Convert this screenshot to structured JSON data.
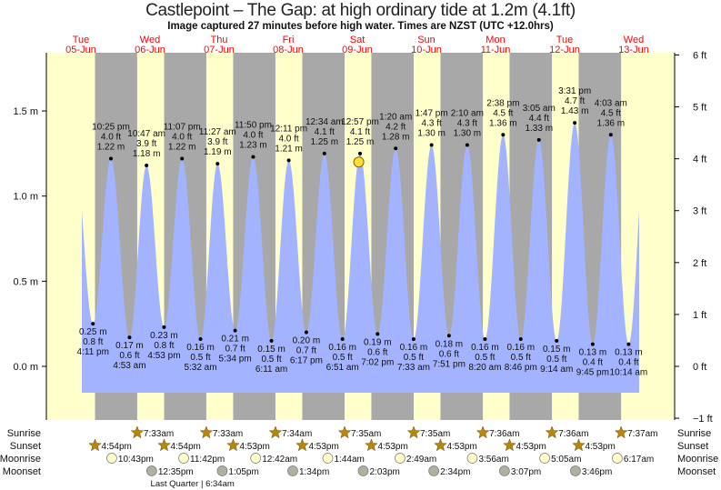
{
  "title": "Castlepoint – The Gap: at high  ordinary tide at 1.2m (4.1ft)",
  "subtitle": "Image captured 27 minutes before high water. Times are NZST (UTC +12.0hrs)",
  "colors": {
    "day": "#ffffcc",
    "night": "#a8a8a8",
    "tide": "#a3b3ff",
    "day_label": "#ff0000",
    "sun_icon": "#b8860b",
    "moonrise_icon": "#ffffcc",
    "moonset_icon": "#b0b0a0",
    "current_marker": "#ffdd33"
  },
  "chart_data": {
    "type": "area",
    "title": "Castlepoint – The Gap: at high  ordinary tide at 1.2m (4.1ft)",
    "y_left": {
      "unit": "m",
      "ticks": [
        "1.5 m",
        "1.0 m",
        "0.5 m",
        "0.0 m"
      ],
      "values": [
        1.5,
        1.0,
        0.5,
        0.0
      ]
    },
    "y_right": {
      "unit": "ft",
      "ticks": [
        "6 ft",
        "5 ft",
        "4 ft",
        "3 ft",
        "2 ft",
        "1 ft",
        "0 ft",
        "−1 ft"
      ],
      "values": [
        6,
        5,
        4,
        3,
        2,
        1,
        0,
        -1
      ]
    },
    "ylim_m": [
      -0.3,
      1.85
    ],
    "days": [
      {
        "dow": "Tue",
        "date": "05-Jun"
      },
      {
        "dow": "Wed",
        "date": "06-Jun"
      },
      {
        "dow": "Thu",
        "date": "07-Jun"
      },
      {
        "dow": "Fri",
        "date": "08-Jun"
      },
      {
        "dow": "Sat",
        "date": "09-Jun"
      },
      {
        "dow": "Sun",
        "date": "10-Jun"
      },
      {
        "dow": "Mon",
        "date": "11-Jun"
      },
      {
        "dow": "Tue",
        "date": "12-Jun"
      },
      {
        "dow": "Wed",
        "date": "13-Jun"
      }
    ],
    "tides": [
      {
        "day": 0,
        "type": "low",
        "time": "4:11 pm",
        "h": "16:11",
        "m": "0.25 m",
        "ft": "0.8 ft",
        "value": 0.25
      },
      {
        "day": 0,
        "type": "high",
        "time": "10:25 pm",
        "h": "22:25",
        "m": "1.22 m",
        "ft": "4.0 ft",
        "value": 1.22
      },
      {
        "day": 1,
        "type": "low",
        "time": "4:53 am",
        "h": "04:53",
        "m": "0.17 m",
        "ft": "0.6 ft",
        "value": 0.17
      },
      {
        "day": 1,
        "type": "high",
        "time": "10:47 am",
        "h": "10:47",
        "m": "1.18 m",
        "ft": "3.9 ft",
        "value": 1.18
      },
      {
        "day": 1,
        "type": "low",
        "time": "4:53 pm",
        "h": "16:53",
        "m": "0.23 m",
        "ft": "0.8 ft",
        "value": 0.23
      },
      {
        "day": 1,
        "type": "high",
        "time": "11:07 pm",
        "h": "23:07",
        "m": "1.22 m",
        "ft": "4.0 ft",
        "value": 1.22
      },
      {
        "day": 2,
        "type": "low",
        "time": "5:32 am",
        "h": "05:32",
        "m": "0.16 m",
        "ft": "0.5 ft",
        "value": 0.16
      },
      {
        "day": 2,
        "type": "high",
        "time": "11:27 am",
        "h": "11:27",
        "m": "1.19 m",
        "ft": "3.9 ft",
        "value": 1.19
      },
      {
        "day": 2,
        "type": "low",
        "time": "5:34 pm",
        "h": "17:34",
        "m": "0.21 m",
        "ft": "0.7 ft",
        "value": 0.21
      },
      {
        "day": 2,
        "type": "high",
        "time": "11:50 pm",
        "h": "23:50",
        "m": "1.23 m",
        "ft": "4.0 ft",
        "value": 1.23
      },
      {
        "day": 3,
        "type": "low",
        "time": "6:11 am",
        "h": "06:11",
        "m": "0.15 m",
        "ft": "0.5 ft",
        "value": 0.15
      },
      {
        "day": 3,
        "type": "high",
        "time": "12:11 pm",
        "h": "12:11",
        "m": "1.21 m",
        "ft": "4.0 ft",
        "value": 1.21
      },
      {
        "day": 3,
        "type": "low",
        "time": "6:17 pm",
        "h": "18:17",
        "m": "0.20 m",
        "ft": "0.7 ft",
        "value": 0.2
      },
      {
        "day": 4,
        "type": "high",
        "time": "12:34 am",
        "h": "00:34",
        "m": "1.25 m",
        "ft": "4.1 ft",
        "value": 1.25
      },
      {
        "day": 4,
        "type": "low",
        "time": "6:51 am",
        "h": "06:51",
        "m": "0.16 m",
        "ft": "0.5 ft",
        "value": 0.16
      },
      {
        "day": 4,
        "type": "high",
        "time": "12:57 pm",
        "h": "12:57",
        "m": "1.25 m",
        "ft": "4.1 ft",
        "value": 1.25
      },
      {
        "day": 4,
        "type": "low",
        "time": "7:02 pm",
        "h": "19:02",
        "m": "0.19 m",
        "ft": "0.6 ft",
        "value": 0.19
      },
      {
        "day": 5,
        "type": "high",
        "time": "1:20 am",
        "h": "01:20",
        "m": "1.28 m",
        "ft": "4.2 ft",
        "value": 1.28
      },
      {
        "day": 5,
        "type": "low",
        "time": "7:33 am",
        "h": "07:33",
        "m": "0.16 m",
        "ft": "0.5 ft",
        "value": 0.16
      },
      {
        "day": 5,
        "type": "high",
        "time": "1:47 pm",
        "h": "13:47",
        "m": "1.30 m",
        "ft": "4.3 ft",
        "value": 1.3
      },
      {
        "day": 5,
        "type": "low",
        "time": "7:51 pm",
        "h": "19:51",
        "m": "0.18 m",
        "ft": "0.6 ft",
        "value": 0.18
      },
      {
        "day": 6,
        "type": "high",
        "time": "2:10 am",
        "h": "02:10",
        "m": "1.30 m",
        "ft": "4.3 ft",
        "value": 1.3
      },
      {
        "day": 6,
        "type": "low",
        "time": "8:20 am",
        "h": "08:20",
        "m": "0.16 m",
        "ft": "0.5 ft",
        "value": 0.16
      },
      {
        "day": 6,
        "type": "high",
        "time": "2:38 pm",
        "h": "14:38",
        "m": "1.36 m",
        "ft": "4.5 ft",
        "value": 1.36
      },
      {
        "day": 6,
        "type": "low",
        "time": "8:46 pm",
        "h": "20:46",
        "m": "0.16 m",
        "ft": "0.5 ft",
        "value": 0.16
      },
      {
        "day": 7,
        "type": "high",
        "time": "3:05 am",
        "h": "03:05",
        "m": "1.33 m",
        "ft": "4.4 ft",
        "value": 1.33
      },
      {
        "day": 7,
        "type": "low",
        "time": "9:14 am",
        "h": "09:14",
        "m": "0.15 m",
        "ft": "0.5 ft",
        "value": 0.15
      },
      {
        "day": 7,
        "type": "high",
        "time": "3:31 pm",
        "h": "15:31",
        "m": "1.43 m",
        "ft": "4.7 ft",
        "value": 1.43
      },
      {
        "day": 7,
        "type": "low",
        "time": "9:45 pm",
        "h": "21:45",
        "m": "0.13 m",
        "ft": "0.4 ft",
        "value": 0.13
      },
      {
        "day": 8,
        "type": "high",
        "time": "4:03 am",
        "h": "04:03",
        "m": "1.36 m",
        "ft": "4.5 ft",
        "value": 1.36
      },
      {
        "day": 8,
        "type": "low",
        "time": "10:14 am",
        "h": "10:14",
        "m": "0.13 m",
        "ft": "0.4 ft",
        "value": 0.13
      }
    ],
    "current": {
      "day": 4,
      "h": "12:30",
      "value": 1.2
    }
  },
  "almanac": {
    "labels": {
      "sunrise": "Sunrise",
      "sunset": "Sunset",
      "moonrise": "Moonrise",
      "moonset": "Moonset"
    },
    "sunrise": [
      {
        "day": 1,
        "h": "07:33",
        "t": "7:33am"
      },
      {
        "day": 2,
        "h": "07:33",
        "t": "7:33am"
      },
      {
        "day": 3,
        "h": "07:34",
        "t": "7:34am"
      },
      {
        "day": 4,
        "h": "07:35",
        "t": "7:35am"
      },
      {
        "day": 5,
        "h": "07:35",
        "t": "7:35am"
      },
      {
        "day": 6,
        "h": "07:36",
        "t": "7:36am"
      },
      {
        "day": 7,
        "h": "07:36",
        "t": "7:36am"
      },
      {
        "day": 8,
        "h": "07:37",
        "t": "7:37am"
      }
    ],
    "sunset": [
      {
        "day": 0,
        "h": "16:54",
        "t": "4:54pm"
      },
      {
        "day": 1,
        "h": "16:54",
        "t": "4:54pm"
      },
      {
        "day": 2,
        "h": "16:53",
        "t": "4:53pm"
      },
      {
        "day": 3,
        "h": "16:53",
        "t": "4:53pm"
      },
      {
        "day": 4,
        "h": "16:53",
        "t": "4:53pm"
      },
      {
        "day": 5,
        "h": "16:53",
        "t": "4:53pm"
      },
      {
        "day": 6,
        "h": "16:53",
        "t": "4:53pm"
      },
      {
        "day": 7,
        "h": "16:53",
        "t": "4:53pm"
      }
    ],
    "moonrise": [
      {
        "day": 0,
        "h": "22:43",
        "t": "10:43pm"
      },
      {
        "day": 1,
        "h": "23:42",
        "t": "11:42pm"
      },
      {
        "day": 3,
        "h": "00:42",
        "t": "12:42am"
      },
      {
        "day": 4,
        "h": "01:44",
        "t": "1:44am"
      },
      {
        "day": 5,
        "h": "02:49",
        "t": "2:49am"
      },
      {
        "day": 6,
        "h": "03:56",
        "t": "3:56am"
      },
      {
        "day": 7,
        "h": "05:05",
        "t": "5:05am"
      },
      {
        "day": 8,
        "h": "06:17",
        "t": "6:17am"
      }
    ],
    "moonset": [
      {
        "day": 1,
        "h": "12:35",
        "t": "12:35pm"
      },
      {
        "day": 2,
        "h": "13:05",
        "t": "1:05pm"
      },
      {
        "day": 3,
        "h": "13:34",
        "t": "1:34pm"
      },
      {
        "day": 4,
        "h": "14:03",
        "t": "2:03pm"
      },
      {
        "day": 5,
        "h": "14:34",
        "t": "2:34pm"
      },
      {
        "day": 6,
        "h": "15:07",
        "t": "3:07pm"
      },
      {
        "day": 7,
        "h": "15:46",
        "t": "3:46pm"
      }
    ],
    "moon_phase": {
      "day": 2,
      "h": "06:34",
      "label": "Last Quarter | 6:34am"
    }
  }
}
